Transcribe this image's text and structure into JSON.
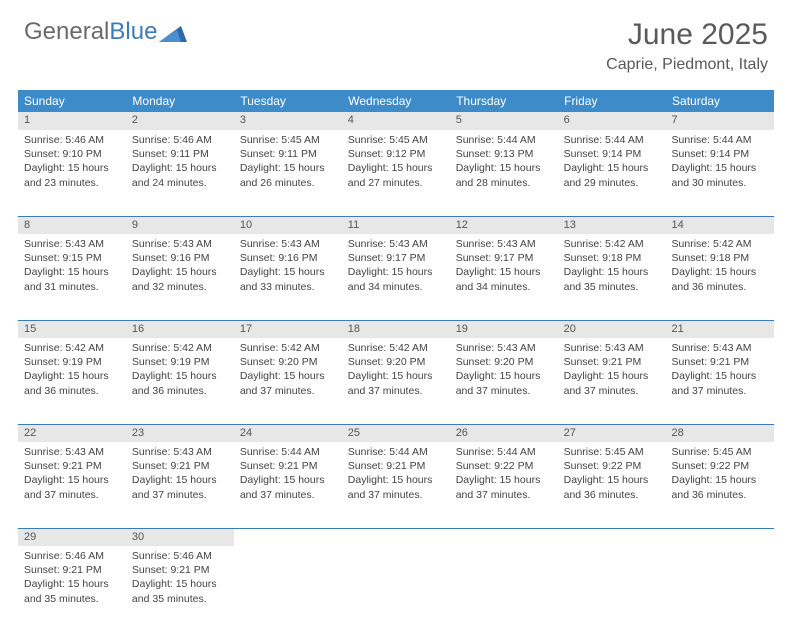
{
  "brand": {
    "part1": "General",
    "part2": "Blue"
  },
  "title": "June 2025",
  "location": "Caprie, Piedmont, Italy",
  "colors": {
    "header_bg": "#3d8bc9",
    "header_text": "#ffffff",
    "daynum_bg": "#e7e7e7",
    "border": "#3d7bb8",
    "text": "#444444",
    "title_text": "#5a5a5a"
  },
  "day_headers": [
    "Sunday",
    "Monday",
    "Tuesday",
    "Wednesday",
    "Thursday",
    "Friday",
    "Saturday"
  ],
  "weeks": [
    [
      {
        "n": "1",
        "sr": "5:46 AM",
        "ss": "9:10 PM",
        "dl": "15 hours and 23 minutes."
      },
      {
        "n": "2",
        "sr": "5:46 AM",
        "ss": "9:11 PM",
        "dl": "15 hours and 24 minutes."
      },
      {
        "n": "3",
        "sr": "5:45 AM",
        "ss": "9:11 PM",
        "dl": "15 hours and 26 minutes."
      },
      {
        "n": "4",
        "sr": "5:45 AM",
        "ss": "9:12 PM",
        "dl": "15 hours and 27 minutes."
      },
      {
        "n": "5",
        "sr": "5:44 AM",
        "ss": "9:13 PM",
        "dl": "15 hours and 28 minutes."
      },
      {
        "n": "6",
        "sr": "5:44 AM",
        "ss": "9:14 PM",
        "dl": "15 hours and 29 minutes."
      },
      {
        "n": "7",
        "sr": "5:44 AM",
        "ss": "9:14 PM",
        "dl": "15 hours and 30 minutes."
      }
    ],
    [
      {
        "n": "8",
        "sr": "5:43 AM",
        "ss": "9:15 PM",
        "dl": "15 hours and 31 minutes."
      },
      {
        "n": "9",
        "sr": "5:43 AM",
        "ss": "9:16 PM",
        "dl": "15 hours and 32 minutes."
      },
      {
        "n": "10",
        "sr": "5:43 AM",
        "ss": "9:16 PM",
        "dl": "15 hours and 33 minutes."
      },
      {
        "n": "11",
        "sr": "5:43 AM",
        "ss": "9:17 PM",
        "dl": "15 hours and 34 minutes."
      },
      {
        "n": "12",
        "sr": "5:43 AM",
        "ss": "9:17 PM",
        "dl": "15 hours and 34 minutes."
      },
      {
        "n": "13",
        "sr": "5:42 AM",
        "ss": "9:18 PM",
        "dl": "15 hours and 35 minutes."
      },
      {
        "n": "14",
        "sr": "5:42 AM",
        "ss": "9:18 PM",
        "dl": "15 hours and 36 minutes."
      }
    ],
    [
      {
        "n": "15",
        "sr": "5:42 AM",
        "ss": "9:19 PM",
        "dl": "15 hours and 36 minutes."
      },
      {
        "n": "16",
        "sr": "5:42 AM",
        "ss": "9:19 PM",
        "dl": "15 hours and 36 minutes."
      },
      {
        "n": "17",
        "sr": "5:42 AM",
        "ss": "9:20 PM",
        "dl": "15 hours and 37 minutes."
      },
      {
        "n": "18",
        "sr": "5:42 AM",
        "ss": "9:20 PM",
        "dl": "15 hours and 37 minutes."
      },
      {
        "n": "19",
        "sr": "5:43 AM",
        "ss": "9:20 PM",
        "dl": "15 hours and 37 minutes."
      },
      {
        "n": "20",
        "sr": "5:43 AM",
        "ss": "9:21 PM",
        "dl": "15 hours and 37 minutes."
      },
      {
        "n": "21",
        "sr": "5:43 AM",
        "ss": "9:21 PM",
        "dl": "15 hours and 37 minutes."
      }
    ],
    [
      {
        "n": "22",
        "sr": "5:43 AM",
        "ss": "9:21 PM",
        "dl": "15 hours and 37 minutes."
      },
      {
        "n": "23",
        "sr": "5:43 AM",
        "ss": "9:21 PM",
        "dl": "15 hours and 37 minutes."
      },
      {
        "n": "24",
        "sr": "5:44 AM",
        "ss": "9:21 PM",
        "dl": "15 hours and 37 minutes."
      },
      {
        "n": "25",
        "sr": "5:44 AM",
        "ss": "9:21 PM",
        "dl": "15 hours and 37 minutes."
      },
      {
        "n": "26",
        "sr": "5:44 AM",
        "ss": "9:22 PM",
        "dl": "15 hours and 37 minutes."
      },
      {
        "n": "27",
        "sr": "5:45 AM",
        "ss": "9:22 PM",
        "dl": "15 hours and 36 minutes."
      },
      {
        "n": "28",
        "sr": "5:45 AM",
        "ss": "9:22 PM",
        "dl": "15 hours and 36 minutes."
      }
    ],
    [
      {
        "n": "29",
        "sr": "5:46 AM",
        "ss": "9:21 PM",
        "dl": "15 hours and 35 minutes."
      },
      {
        "n": "30",
        "sr": "5:46 AM",
        "ss": "9:21 PM",
        "dl": "15 hours and 35 minutes."
      },
      null,
      null,
      null,
      null,
      null
    ]
  ],
  "labels": {
    "sunrise": "Sunrise:",
    "sunset": "Sunset:",
    "daylight": "Daylight:"
  }
}
